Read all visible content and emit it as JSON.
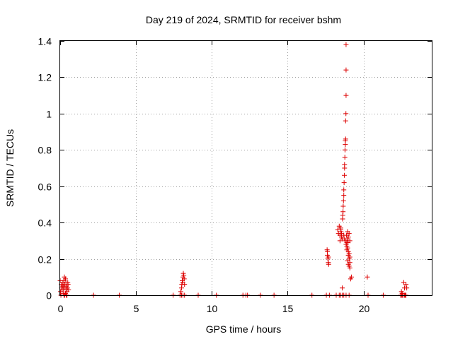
{
  "chart_data": {
    "type": "scatter",
    "title": "Day 219 of 2024, SRMTID for receiver bshm",
    "xlabel": "GPS time / hours",
    "ylabel": "SRMTID / TECUs",
    "xlim": [
      0,
      24.5
    ],
    "ylim": [
      0,
      1.4
    ],
    "xticks": [
      0,
      5,
      10,
      15,
      20
    ],
    "xtick_labels": [
      "0",
      "5",
      "10",
      "15",
      "20"
    ],
    "yticks": [
      0,
      0.2,
      0.4,
      0.6,
      0.8,
      1.0,
      1.2,
      1.4
    ],
    "ytick_labels": [
      "0",
      "0.2",
      "0.4",
      "0.6",
      "0.8",
      "1",
      "1.2",
      "1.4"
    ],
    "grid": true,
    "legend": "none",
    "marker": "plus",
    "marker_color": "#dd0000",
    "series": [
      {
        "x": [
          0.0,
          0.02,
          0.05,
          0.08,
          0.1,
          0.12,
          0.15,
          0.18,
          0.2,
          0.22,
          0.25,
          0.28,
          0.3,
          0.32,
          0.35,
          0.38,
          0.4,
          0.42,
          0.45,
          0.48,
          0.5,
          0.52,
          0.55,
          0.3,
          0.35,
          0.4,
          0.45,
          0.2,
          0.25,
          2.2,
          3.9,
          7.45,
          7.9,
          7.95,
          8.0,
          8.02,
          8.05,
          8.08,
          8.1,
          8.12,
          8.15,
          8.18,
          8.2,
          8.0,
          8.1,
          8.2,
          9.1,
          10.3,
          12.05,
          12.25,
          12.35,
          13.2,
          14.1,
          16.6,
          17.6,
          17.62,
          17.65,
          17.68,
          17.7,
          17.62,
          17.68,
          17.55,
          17.75,
          18.2,
          18.3,
          18.35,
          18.4,
          18.45,
          18.5,
          18.52,
          18.55,
          18.45,
          18.5,
          18.55,
          18.6,
          18.4,
          18.5,
          18.6,
          18.62,
          18.63,
          18.65,
          18.66,
          18.68,
          18.7,
          18.7,
          18.72,
          18.74,
          18.75,
          18.75,
          18.77,
          18.78,
          18.8,
          18.8,
          18.82,
          18.82,
          18.84,
          18.85,
          18.85,
          18.7,
          18.75,
          18.8,
          18.85,
          18.9,
          18.9,
          18.95,
          19.0,
          19.0,
          19.05,
          19.05,
          19.1,
          19.1,
          18.95,
          19.0,
          19.05,
          19.1,
          18.9,
          19.0,
          18.95,
          19.05,
          19.1,
          18.88,
          18.92,
          18.98,
          18.6,
          18.7,
          18.85,
          19.05,
          19.15,
          19.2,
          20.25,
          20.3,
          21.3,
          22.45,
          22.5,
          22.55,
          22.6,
          22.65,
          22.7,
          22.75,
          22.8,
          22.85,
          22.5,
          22.6,
          22.7,
          22.8,
          22.55,
          22.75
        ],
        "y": [
          0.08,
          0.02,
          0.0,
          0.06,
          0.04,
          0.03,
          0.05,
          0.07,
          0.03,
          0.05,
          0.08,
          0.1,
          0.06,
          0.04,
          0.09,
          0.07,
          0.05,
          0.03,
          0.02,
          0.04,
          0.07,
          0.06,
          0.03,
          0.0,
          0.01,
          0.0,
          0.0,
          0.01,
          0.0,
          0.0,
          0.0,
          0.0,
          0.0,
          0.02,
          0.04,
          0.06,
          0.08,
          0.07,
          0.1,
          0.12,
          0.11,
          0.09,
          0.06,
          0.0,
          0.0,
          0.0,
          0.0,
          0.0,
          0.0,
          0.0,
          0.0,
          0.0,
          0.0,
          0.0,
          0.25,
          0.22,
          0.2,
          0.18,
          0.17,
          0.24,
          0.21,
          0.0,
          0.0,
          0.0,
          0.36,
          0.34,
          0.38,
          0.33,
          0.37,
          0.35,
          0.32,
          0.3,
          0.36,
          0.34,
          0.31,
          0.0,
          0.0,
          0.0,
          0.42,
          0.44,
          0.46,
          0.49,
          0.52,
          0.55,
          0.58,
          0.62,
          0.66,
          0.7,
          0.72,
          0.76,
          0.8,
          0.83,
          0.85,
          0.86,
          0.96,
          1.0,
          1.1,
          1.24,
          0.33,
          0.31,
          0.3,
          0.28,
          0.27,
          0.25,
          0.26,
          0.24,
          0.22,
          0.23,
          0.2,
          0.21,
          0.18,
          0.19,
          0.17,
          0.16,
          0.15,
          0.29,
          0.32,
          0.35,
          0.34,
          0.3,
          0.33,
          0.31,
          0.29,
          0.04,
          0.0,
          0.0,
          0.0,
          0.09,
          0.1,
          0.1,
          0.0,
          0.0,
          0.0,
          0.02,
          0.01,
          0.0,
          0.07,
          0.04,
          0.0,
          0.06,
          0.04,
          0.0,
          0.0,
          0.0,
          0.0,
          0.0,
          0.0
        ]
      },
      {
        "x": [
          18.85
        ],
        "y": [
          1.38
        ]
      }
    ]
  }
}
